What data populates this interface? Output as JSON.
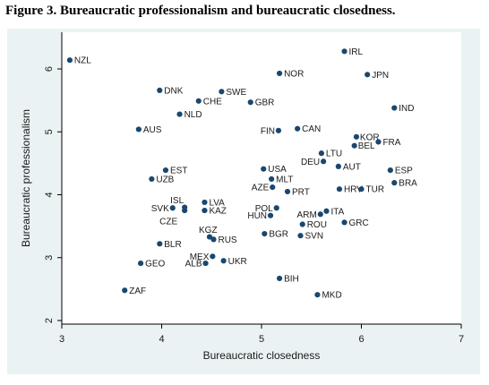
{
  "figure_title": "Figure 3. Bureaucratic professionalism and bureaucratic closedness.",
  "colors": {
    "marker": "#1a476f",
    "plot_background": "#eaf2f3",
    "plot_area": "#ffffff",
    "axis": "#000000"
  },
  "chart_data": {
    "type": "scatter",
    "xlabel": "Bureaucratic closedness",
    "ylabel": "Bureaucratic professionalism",
    "xlim": [
      3,
      7
    ],
    "ylim": [
      2,
      6
    ],
    "xticks": [
      3,
      4,
      5,
      6,
      7
    ],
    "yticks": [
      2,
      3,
      4,
      5,
      6
    ],
    "grid": false,
    "points": [
      {
        "label": "NZL",
        "x": 3.08,
        "y": 6.14
      },
      {
        "label": "IRL",
        "x": 5.83,
        "y": 6.28
      },
      {
        "label": "NOR",
        "x": 5.18,
        "y": 5.93
      },
      {
        "label": "JPN",
        "x": 6.06,
        "y": 5.91
      },
      {
        "label": "DNK",
        "x": 3.98,
        "y": 5.66
      },
      {
        "label": "SWE",
        "x": 4.6,
        "y": 5.64
      },
      {
        "label": "CHE",
        "x": 4.37,
        "y": 5.49
      },
      {
        "label": "GBR",
        "x": 4.89,
        "y": 5.47
      },
      {
        "label": "IND",
        "x": 6.33,
        "y": 5.38
      },
      {
        "label": "NLD",
        "x": 4.18,
        "y": 5.28
      },
      {
        "label": "AUS",
        "x": 3.77,
        "y": 5.04
      },
      {
        "label": "FIN",
        "x": 5.17,
        "y": 5.02
      },
      {
        "label": "CAN",
        "x": 5.36,
        "y": 5.05
      },
      {
        "label": "KOR",
        "x": 5.95,
        "y": 4.92
      },
      {
        "label": "FRA",
        "x": 6.17,
        "y": 4.84
      },
      {
        "label": "BEL",
        "x": 5.93,
        "y": 4.78
      },
      {
        "label": "LTU",
        "x": 5.6,
        "y": 4.66
      },
      {
        "label": "DEU",
        "x": 5.62,
        "y": 4.53
      },
      {
        "label": "AUT",
        "x": 5.77,
        "y": 4.45
      },
      {
        "label": "EST",
        "x": 4.04,
        "y": 4.39
      },
      {
        "label": "USA",
        "x": 5.02,
        "y": 4.41
      },
      {
        "label": "ESP",
        "x": 6.29,
        "y": 4.39
      },
      {
        "label": "UZB",
        "x": 3.9,
        "y": 4.25
      },
      {
        "label": "MLT",
        "x": 5.1,
        "y": 4.25
      },
      {
        "label": "BRA",
        "x": 6.33,
        "y": 4.19
      },
      {
        "label": "AZE",
        "x": 5.11,
        "y": 4.12
      },
      {
        "label": "PRT",
        "x": 5.26,
        "y": 4.05
      },
      {
        "label": "HRV",
        "x": 5.78,
        "y": 4.09
      },
      {
        "label": "TUR",
        "x": 6.0,
        "y": 4.09
      },
      {
        "label": "ISL",
        "x": 4.23,
        "y": 3.8
      },
      {
        "label": "LVA",
        "x": 4.43,
        "y": 3.88
      },
      {
        "label": "SVK",
        "x": 4.11,
        "y": 3.79
      },
      {
        "label": "CZE",
        "x": 4.23,
        "y": 3.75
      },
      {
        "label": "KAZ",
        "x": 4.43,
        "y": 3.75
      },
      {
        "label": "POL",
        "x": 5.15,
        "y": 3.79
      },
      {
        "label": "HUN",
        "x": 5.09,
        "y": 3.67
      },
      {
        "label": "ARM",
        "x": 5.59,
        "y": 3.69
      },
      {
        "label": "ITA",
        "x": 5.65,
        "y": 3.74
      },
      {
        "label": "ROU",
        "x": 5.41,
        "y": 3.53
      },
      {
        "label": "GRC",
        "x": 5.83,
        "y": 3.56
      },
      {
        "label": "KGZ",
        "x": 4.48,
        "y": 3.33
      },
      {
        "label": "RUS",
        "x": 4.52,
        "y": 3.29
      },
      {
        "label": "BGR",
        "x": 5.03,
        "y": 3.38
      },
      {
        "label": "SVN",
        "x": 5.39,
        "y": 3.35
      },
      {
        "label": "BLR",
        "x": 3.98,
        "y": 3.22
      },
      {
        "label": "MEX",
        "x": 4.51,
        "y": 3.02
      },
      {
        "label": "UKR",
        "x": 4.62,
        "y": 2.95
      },
      {
        "label": "GEO",
        "x": 3.79,
        "y": 2.91
      },
      {
        "label": "ALB",
        "x": 4.44,
        "y": 2.91
      },
      {
        "label": "BIH",
        "x": 5.18,
        "y": 2.67
      },
      {
        "label": "ZAF",
        "x": 3.63,
        "y": 2.48
      },
      {
        "label": "MKD",
        "x": 5.56,
        "y": 2.41
      }
    ]
  }
}
